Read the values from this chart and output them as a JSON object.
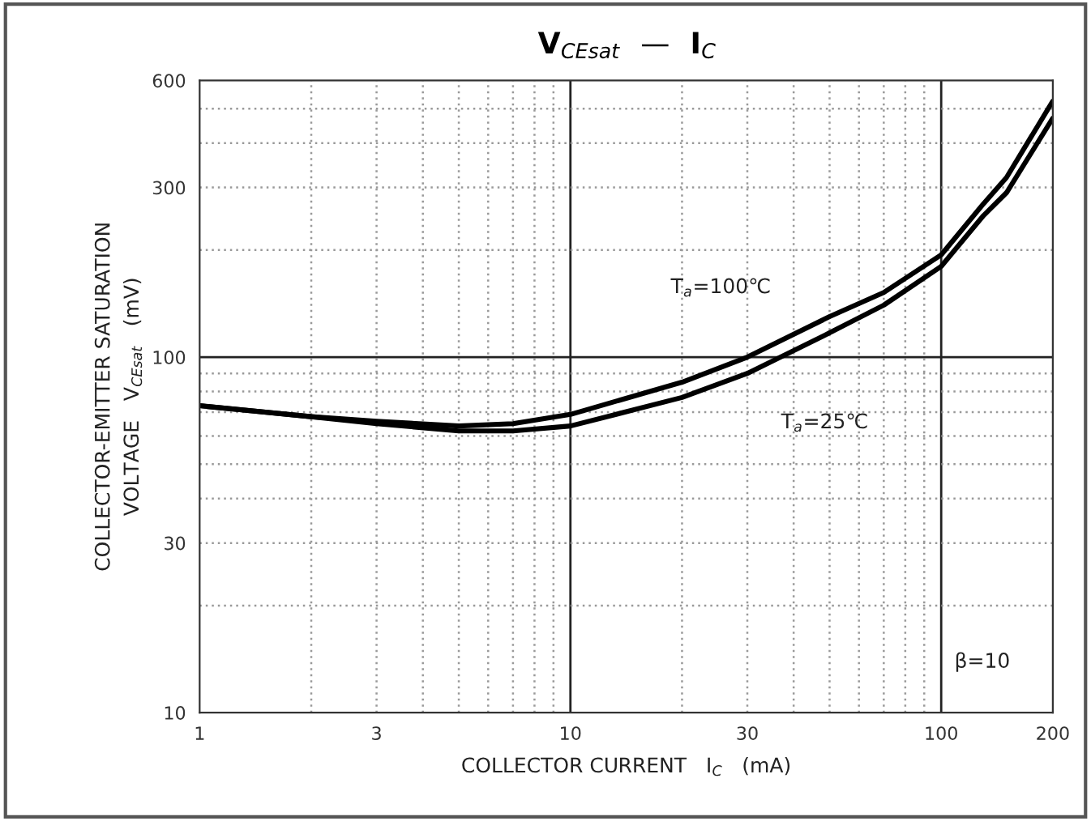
{
  "chart_data": {
    "type": "line",
    "title": "V$_{CEsat}$  —  I$_{C}$",
    "xlabel": "COLLECTOR CURRENT   I$_{C}$   (mA)",
    "ylabel": "COLLECTOR-EMITTER SATURATION\nVOLTAGE   V$_{CEsat}$   (mV)",
    "log": "xy",
    "xlim": [
      1,
      200
    ],
    "ylim": [
      10,
      600
    ],
    "xticks": [
      1,
      3,
      10,
      30,
      100,
      200
    ],
    "yticks": [
      10,
      30,
      100,
      300,
      600
    ],
    "grid": true,
    "marker": "none",
    "line_style": "solid",
    "annotations": [
      "β=10"
    ],
    "series": [
      {
        "name": "T$_{a}$=100℃",
        "color": "#000000",
        "x": [
          1,
          2,
          3,
          5,
          7,
          10,
          20,
          30,
          50,
          70,
          100,
          130,
          150,
          200
        ],
        "values": [
          73,
          68,
          66,
          64,
          65,
          69,
          85,
          100,
          130,
          152,
          194,
          270,
          320,
          525
        ]
      },
      {
        "name": "T$_{a}$=25℃",
        "color": "#000000",
        "x": [
          1,
          2,
          3,
          5,
          7,
          10,
          20,
          30,
          50,
          70,
          100,
          130,
          150,
          200
        ],
        "values": [
          73,
          68,
          65,
          62,
          62,
          64,
          77,
          90,
          117,
          140,
          180,
          250,
          290,
          470
        ]
      }
    ]
  }
}
